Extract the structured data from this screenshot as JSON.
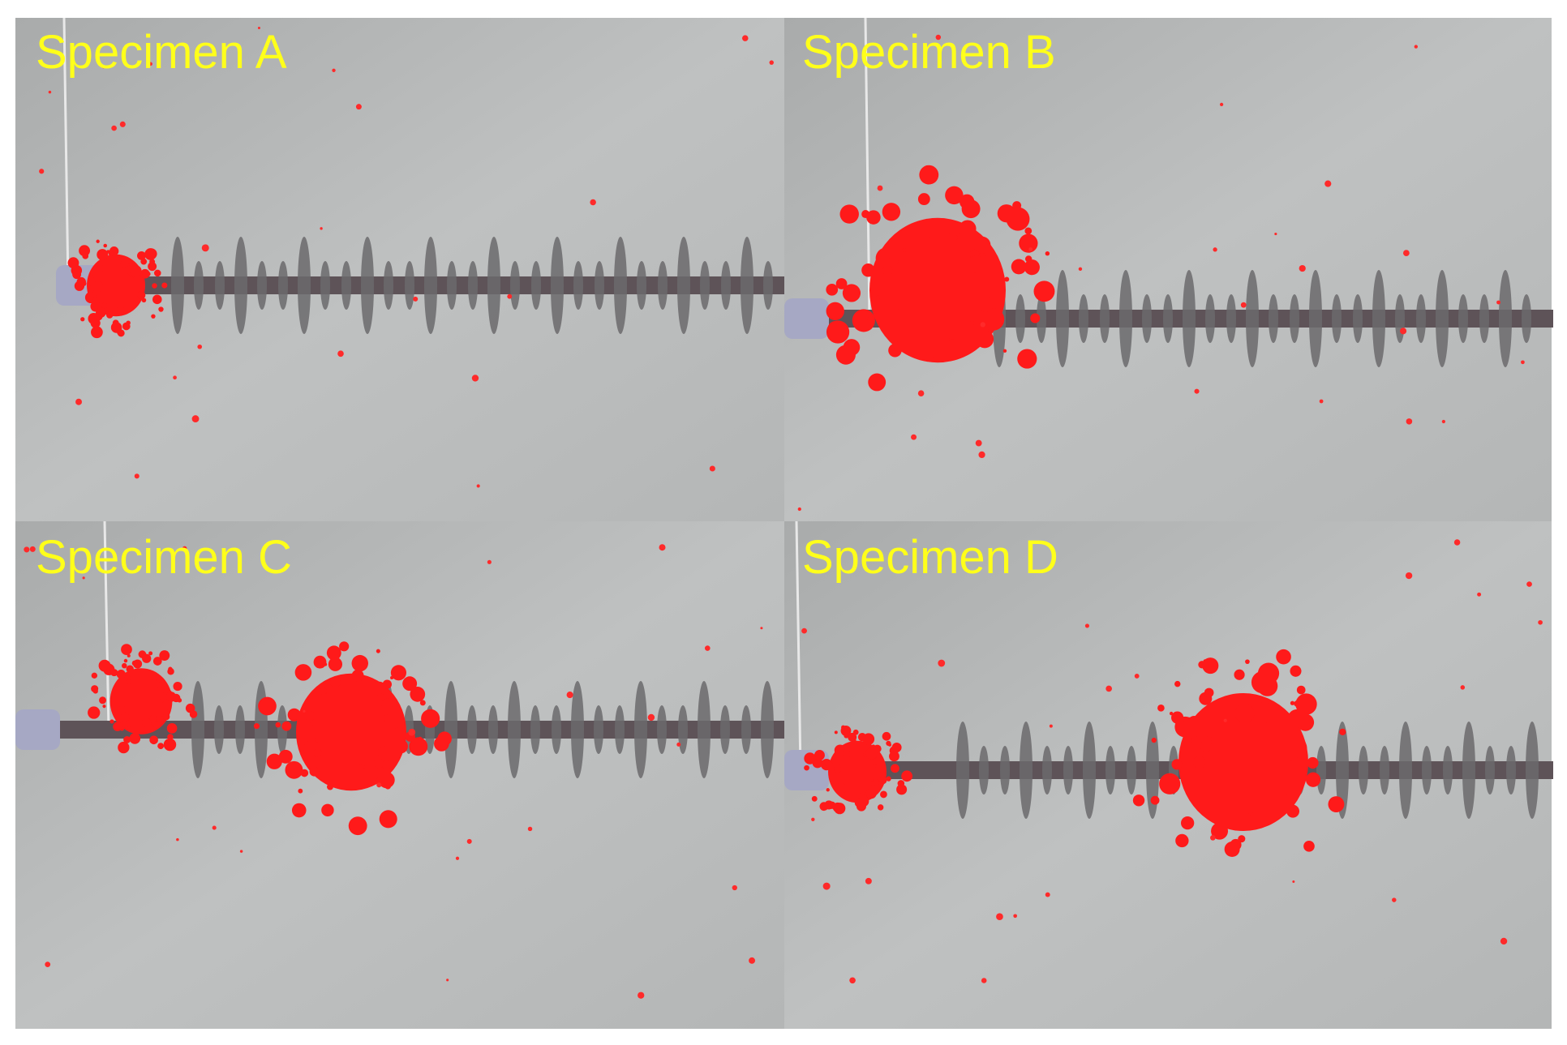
{
  "panels": [
    {
      "label": "Specimen A"
    },
    {
      "label": "Specimen B"
    },
    {
      "label": "Specimen C"
    },
    {
      "label": "Specimen D"
    }
  ]
}
